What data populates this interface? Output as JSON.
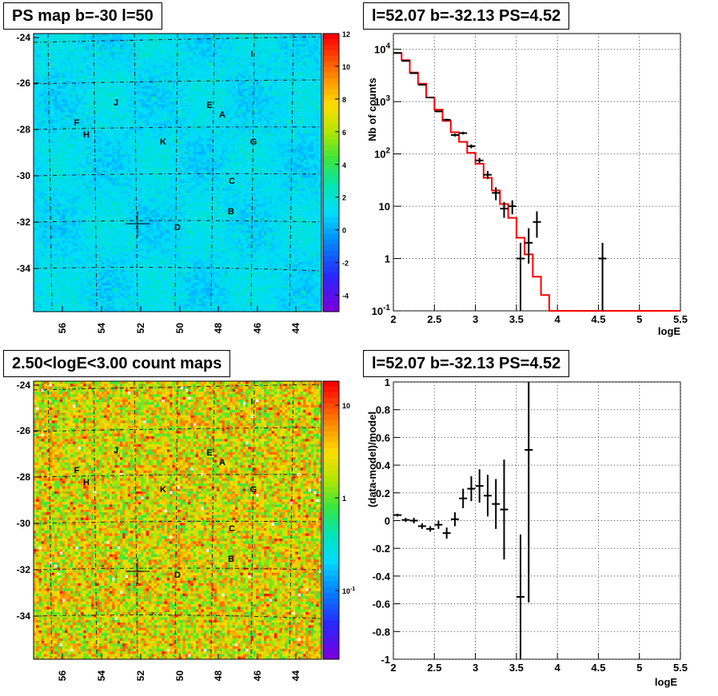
{
  "panels": {
    "map_top_title": "PS map b=-30 l=50",
    "spec_top_title": "l=52.07 b=-32.13 PS=4.52",
    "map_bottom_title": "2.50<logE<3.00 count maps",
    "spec_bottom_title": "l=52.07 b=-32.13 PS=4.52"
  },
  "chart_data": [
    {
      "type": "heatmap",
      "title": "PS map b=-30 l=50",
      "x_ticks": [
        "56",
        "54",
        "52",
        "50",
        "48",
        "46",
        "44"
      ],
      "y_ticks": [
        "-24",
        "-26",
        "-28",
        "-30",
        "-32",
        "-34"
      ],
      "colorbar_ticks": [
        "12",
        "10",
        "8",
        "6",
        "4",
        "2",
        "0",
        "-2",
        "-4"
      ],
      "colorbar_range": [
        -5,
        12
      ],
      "grid": true,
      "labels": [
        "I",
        "J",
        "E",
        "A",
        "F",
        "H",
        "K",
        "G",
        "C",
        "B",
        "D"
      ],
      "marker": "cross at l=52.07 b=-32.13"
    },
    {
      "type": "line",
      "title": "l=52.07 b=-32.13 PS=4.52",
      "xlabel": "logE",
      "ylabel": "Nb of counts",
      "xlim": [
        2,
        5.5
      ],
      "ylim": [
        0.1,
        20000
      ],
      "yscale": "log",
      "x_ticks": [
        "2",
        "2.5",
        "3",
        "3.5",
        "4",
        "4.5",
        "5",
        "5.5"
      ],
      "y_ticks": [
        "10^4",
        "10^3",
        "10^2",
        "10",
        "1",
        "10^-1"
      ],
      "grid": true,
      "data": {
        "x": [
          2.05,
          2.15,
          2.25,
          2.35,
          2.45,
          2.55,
          2.65,
          2.75,
          2.85,
          2.95,
          3.05,
          3.15,
          3.25,
          3.35,
          3.45,
          3.55,
          3.65,
          3.75,
          4.55
        ],
        "y": [
          8500,
          6000,
          3500,
          2100,
          1200,
          650,
          450,
          230,
          250,
          140,
          75,
          40,
          18,
          9,
          10,
          1,
          2,
          5,
          1
        ],
        "yerr_lo": [
          80,
          70,
          55,
          45,
          35,
          25,
          20,
          15,
          15,
          12,
          9,
          7,
          5,
          3,
          3,
          0.9,
          1.2,
          2.5,
          0.9
        ],
        "yerr_hi": [
          80,
          70,
          55,
          45,
          35,
          25,
          20,
          15,
          15,
          12,
          9,
          7,
          5,
          3,
          3,
          1.0,
          1.8,
          3.0,
          1.0
        ]
      },
      "model": {
        "edges": [
          2.0,
          2.1,
          2.2,
          2.3,
          2.4,
          2.5,
          2.6,
          2.7,
          2.8,
          2.9,
          3.0,
          3.1,
          3.2,
          3.3,
          3.4,
          3.5,
          3.6,
          3.7,
          3.8,
          3.9,
          4.0,
          5.5
        ],
        "values": [
          8500,
          6200,
          3600,
          2200,
          1200,
          700,
          430,
          260,
          170,
          105,
          65,
          35,
          20,
          11,
          6,
          2.5,
          1.2,
          0.45,
          0.2,
          0.1,
          0.1
        ]
      }
    },
    {
      "type": "scatter",
      "title": "l=52.07 b=-32.13 PS=4.52",
      "xlabel": "logE",
      "ylabel": "(data-model)/model",
      "xlim": [
        2,
        5.5
      ],
      "ylim": [
        -1,
        1
      ],
      "x_ticks": [
        "2",
        "2.5",
        "3",
        "3.5",
        "4",
        "4.5",
        "5",
        "5.5"
      ],
      "y_ticks": [
        "1",
        "0.8",
        "0.6",
        "0.4",
        "0.2",
        "0",
        "-0.2",
        "-0.4",
        "-0.6",
        "-0.8",
        "-1"
      ],
      "grid": true,
      "data": {
        "x": [
          2.05,
          2.15,
          2.25,
          2.35,
          2.45,
          2.55,
          2.65,
          2.75,
          2.85,
          2.95,
          3.05,
          3.15,
          3.25,
          3.35,
          3.55,
          3.65
        ],
        "y": [
          0.04,
          0.005,
          0.0,
          -0.04,
          -0.06,
          -0.03,
          -0.09,
          0.01,
          0.16,
          0.23,
          0.25,
          0.18,
          0.12,
          0.08,
          -0.55,
          0.51
        ],
        "yerr": [
          0.01,
          0.015,
          0.02,
          0.02,
          0.02,
          0.03,
          0.04,
          0.05,
          0.07,
          0.09,
          0.12,
          0.15,
          0.18,
          0.36,
          0.45,
          1.1
        ]
      }
    },
    {
      "type": "heatmap",
      "title": "2.50<logE<3.00 count maps",
      "x_ticks": [
        "56",
        "54",
        "52",
        "50",
        "48",
        "46",
        "44"
      ],
      "y_ticks": [
        "-24",
        "-26",
        "-28",
        "-30",
        "-32",
        "-34"
      ],
      "colorbar_ticks": [
        "10",
        "1",
        "10^-1"
      ],
      "colorbar_scale": "log",
      "grid": true,
      "labels": [
        "I",
        "J",
        "E",
        "A",
        "F",
        "H",
        "K",
        "G",
        "C",
        "B",
        "D"
      ],
      "marker": "cross at l=52.07 b=-32.13"
    }
  ],
  "colors": {
    "model_line": "#ff0000",
    "data_points": "#000000",
    "bg": "#ffffff"
  }
}
